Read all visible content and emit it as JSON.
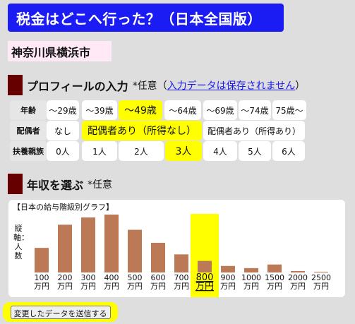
{
  "header": {
    "title": "税金はどこへ行った？（日本全国版）",
    "location": "神奈川県横浜市"
  },
  "profile": {
    "title": "プロフィールの入力",
    "optional": "*任意（",
    "link": "入力データは保存されません",
    "close_paren": "）",
    "rows": [
      {
        "label": "年齢",
        "options": [
          "〜29歳",
          "〜39歳",
          "〜49歳",
          "〜64歳",
          "〜69歳",
          "〜74歳",
          "75歳〜"
        ],
        "selected": 2
      },
      {
        "label": "配偶者",
        "options": [
          "なし",
          "配偶者あり（所得なし）",
          "配偶者あり（所得あり）"
        ],
        "selected": 1
      },
      {
        "label": "扶養親族",
        "options": [
          "0人",
          "1人",
          "2人",
          "3人",
          "4人",
          "5人",
          "6人"
        ],
        "selected": 3
      }
    ]
  },
  "income": {
    "title": "年収を選ぶ",
    "optional": "*任意"
  },
  "chart_data": {
    "type": "bar",
    "title": "【日本の給与階級別グラフ】",
    "ylabel": "縦軸：人数",
    "categories": [
      "100\n万円",
      "200\n万円",
      "300\n万円",
      "400\n万円",
      "500\n万円",
      "600\n万円",
      "700\n万円",
      "800\n万円",
      "900\n万円",
      "1000\n万円",
      "1500\n万円",
      "2000\n万円",
      "2500\n万円"
    ],
    "values": [
      34,
      66,
      76,
      80,
      59,
      41,
      25,
      16,
      9,
      6,
      11,
      2,
      1
    ],
    "selected_index": 7,
    "bar_color": "#bb7a55",
    "highlight_color": "#ffff00"
  },
  "submit": {
    "label": "変更したデータを送信する"
  }
}
